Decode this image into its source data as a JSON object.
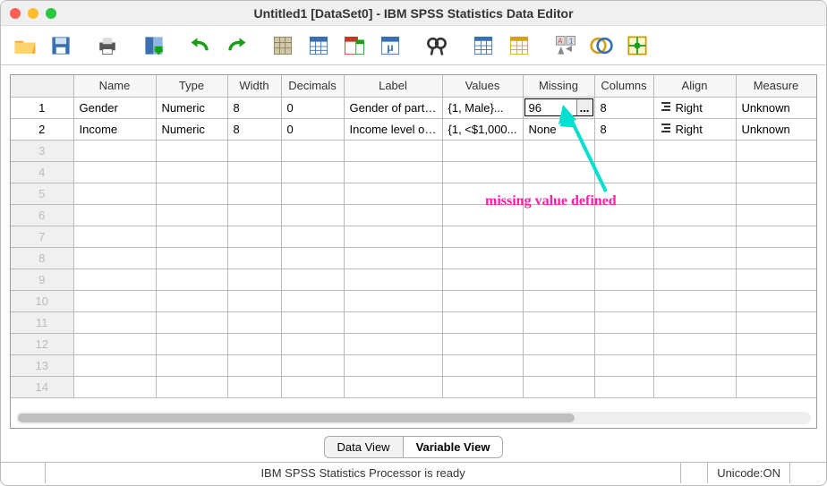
{
  "window": {
    "title": "Untitled1 [DataSet0] - IBM SPSS Statistics Data Editor"
  },
  "toolbar": {
    "icons": [
      "open",
      "save",
      "print",
      "recall",
      "undo",
      "redo",
      "goto",
      "vars",
      "find3",
      "compute",
      "findbin",
      "split",
      "weight",
      "select",
      "valuelabels",
      "usecase"
    ]
  },
  "columns": {
    "rowhead": "",
    "name": "Name",
    "type": "Type",
    "width": "Width",
    "decimals": "Decimals",
    "label": "Label",
    "values": "Values",
    "missing": "Missing",
    "columns": "Columns",
    "align": "Align",
    "measure": "Measure"
  },
  "col_widths": {
    "rowhead": 70,
    "name": 92,
    "type": 80,
    "width": 60,
    "decimals": 70,
    "label": 110,
    "values": 90,
    "missing": 80,
    "columns": 66,
    "align": 92,
    "measure": 90
  },
  "rows": [
    {
      "n": "1",
      "name": "Gender",
      "type": "Numeric",
      "width": "8",
      "decimals": "0",
      "label": "Gender of parti...",
      "values": "{1, Male}...",
      "missing": "96",
      "missing_editing": true,
      "columns": "8",
      "align": "Right",
      "measure": "Unknown",
      "active": true
    },
    {
      "n": "2",
      "name": "Income",
      "type": "Numeric",
      "width": "8",
      "decimals": "0",
      "label": "Income level of...",
      "values": "{1, <$1,000...",
      "missing": "None",
      "columns": "8",
      "align": "Right",
      "measure": "Unknown",
      "active": true
    }
  ],
  "empty_rows": [
    "3",
    "4",
    "5",
    "6",
    "7",
    "8",
    "9",
    "10",
    "11",
    "12",
    "13",
    "14"
  ],
  "tabs": {
    "data": "Data View",
    "variable": "Variable View",
    "active": "variable"
  },
  "status": {
    "processor": "IBM SPSS Statistics Processor is ready",
    "unicode": "Unicode:ON"
  },
  "annotation": {
    "text": "missing value defined"
  },
  "colors": {
    "arrow": "#00e0d0",
    "annot": "#ff1fa8"
  }
}
